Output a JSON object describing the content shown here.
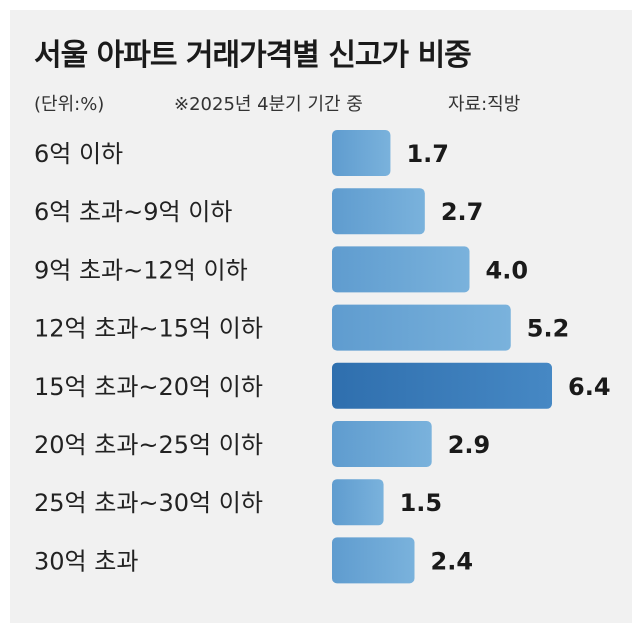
{
  "header": {
    "title": "서울 아파트 거래가격별 신고가 비중",
    "unit_note": "(단위:%)",
    "period_note": "※2025년 4분기 기간 중",
    "source_note": "자료:직방"
  },
  "colors": {
    "panel_bg": "#f1f1f1",
    "bar": "#6fa8d6",
    "bar_highlight": "#3b7cb8"
  },
  "chart_data": {
    "type": "bar",
    "orientation": "horizontal",
    "title": "서울 아파트 거래가격별 신고가 비중",
    "unit": "%",
    "categories": [
      "6억 이하",
      "6억 초과~9억 이하",
      "9억 초과~12억 이하",
      "12억 초과~15억 이하",
      "15억 초과~20억 이하",
      "20억 초과~25억 이하",
      "25억 초과~30억 이하",
      "30억 초과"
    ],
    "values": [
      1.7,
      2.7,
      4.0,
      5.2,
      6.4,
      2.9,
      1.5,
      2.4
    ],
    "value_labels": [
      "1.7",
      "2.7",
      "4.0",
      "5.2",
      "6.4",
      "2.9",
      "1.5",
      "2.4"
    ],
    "highlight_index": 4,
    "xlim": [
      0,
      6.4
    ],
    "grid": false,
    "legend": "none"
  }
}
